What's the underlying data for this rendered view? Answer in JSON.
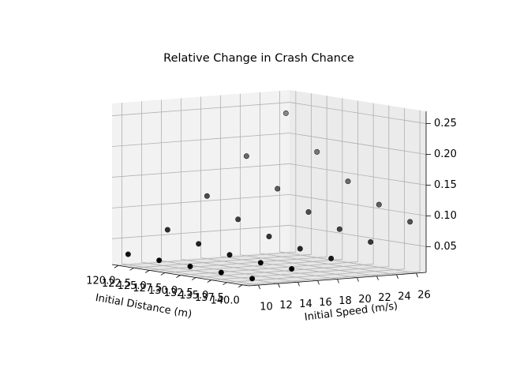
{
  "chart_data": {
    "type": "scatter3d",
    "title": "Relative Change in Crash Chance",
    "xlabel": "Initial Distance (m)",
    "ylabel": "Initial Speed (m/s)",
    "x": [
      120,
      125,
      130,
      135,
      140,
      120,
      125,
      130,
      135,
      140,
      120,
      125,
      130,
      135,
      140,
      120,
      125,
      130,
      135,
      140,
      120,
      125,
      130,
      135,
      140
    ],
    "y": [
      10,
      10,
      10,
      10,
      10,
      14,
      14,
      14,
      14,
      14,
      18,
      18,
      18,
      18,
      18,
      22,
      22,
      22,
      22,
      22,
      26,
      26,
      26,
      26,
      26
    ],
    "z": [
      0.025,
      0.023,
      0.021,
      0.019,
      0.017,
      0.06,
      0.045,
      0.035,
      0.03,
      0.028,
      0.11,
      0.08,
      0.06,
      0.048,
      0.04,
      0.17,
      0.125,
      0.095,
      0.075,
      0.062,
      0.235,
      0.18,
      0.14,
      0.11,
      0.09
    ],
    "color": "#000000",
    "xlim": [
      119,
      141
    ],
    "ylim": [
      9,
      27
    ],
    "zlim": [
      0.008,
      0.27
    ],
    "xticks": [
      {
        "value": 120,
        "label": "120.0"
      },
      {
        "value": 122.5,
        "label": "122.5"
      },
      {
        "value": 125,
        "label": "125.0"
      },
      {
        "value": 127.5,
        "label": "127.5"
      },
      {
        "value": 130,
        "label": "130.0"
      },
      {
        "value": 132.5,
        "label": "132.5"
      },
      {
        "value": 135,
        "label": "135.0"
      },
      {
        "value": 137.5,
        "label": "137.5"
      },
      {
        "value": 140,
        "label": "140.0"
      }
    ],
    "yticks": [
      10,
      12,
      14,
      16,
      18,
      20,
      22,
      24,
      26
    ],
    "zticks": [
      0.05,
      {
        "value": 0.1,
        "label": "0.10"
      },
      0.15,
      {
        "value": 0.2,
        "label": "0.20"
      },
      0.25
    ],
    "grid": true
  }
}
